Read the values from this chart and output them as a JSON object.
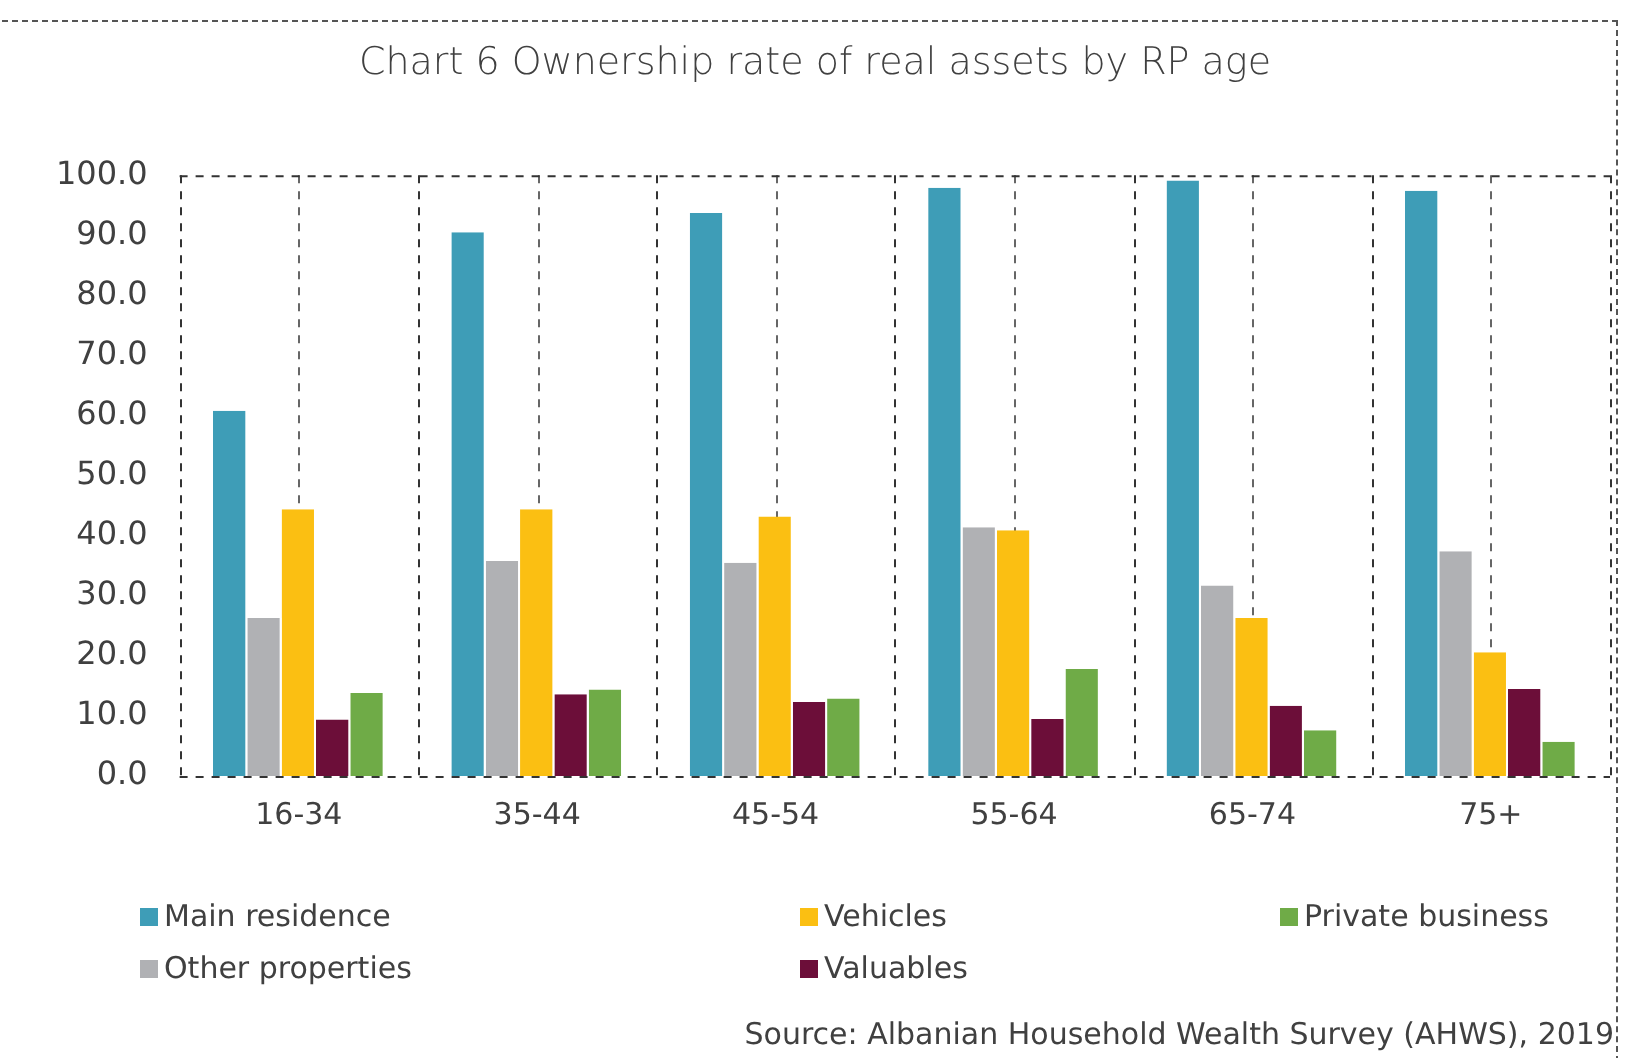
{
  "chart_data": {
    "type": "bar",
    "title": "Chart 6 Ownership rate of real assets by RP age",
    "categories": [
      "16-34",
      "35-44",
      "45-54",
      "55-64",
      "65-74",
      "75+"
    ],
    "series": [
      {
        "name": "Main residence",
        "color": "#3e9db7",
        "values": [
          60.8,
          90.5,
          93.7,
          97.9,
          99.1,
          97.4
        ]
      },
      {
        "name": "Other properties",
        "color": "#b0b1b4",
        "values": [
          26.3,
          35.8,
          35.5,
          41.4,
          31.7,
          37.4
        ]
      },
      {
        "name": "Vehicles",
        "color": "#fbbf12",
        "values": [
          44.4,
          44.4,
          43.2,
          40.9,
          26.3,
          20.6
        ]
      },
      {
        "name": "Valuables",
        "color": "#6c0e39",
        "values": [
          9.4,
          13.6,
          12.3,
          9.5,
          11.7,
          14.5
        ]
      },
      {
        "name": "Private business",
        "color": "#6fab47",
        "values": [
          13.8,
          14.4,
          12.9,
          17.8,
          7.6,
          5.7
        ]
      }
    ],
    "ylim": [
      0,
      100
    ],
    "yticks": [
      {
        "value": 0,
        "label": "0.0"
      },
      {
        "value": 10,
        "label": "10.0"
      },
      {
        "value": 20,
        "label": "20.0"
      },
      {
        "value": 30,
        "label": "30.0"
      },
      {
        "value": 40,
        "label": "40.0"
      },
      {
        "value": 50,
        "label": "50.0"
      },
      {
        "value": 60,
        "label": "60.0"
      },
      {
        "value": 70,
        "label": "70.0"
      },
      {
        "value": 80,
        "label": "80.0"
      },
      {
        "value": 90,
        "label": "90.0"
      },
      {
        "value": 100,
        "label": "100.0"
      }
    ],
    "grid": "x",
    "line_style": "dashed",
    "legend": "bottom",
    "annotations": [
      "Source: Albanian Household Wealth Survey (AHWS), 2019"
    ]
  }
}
